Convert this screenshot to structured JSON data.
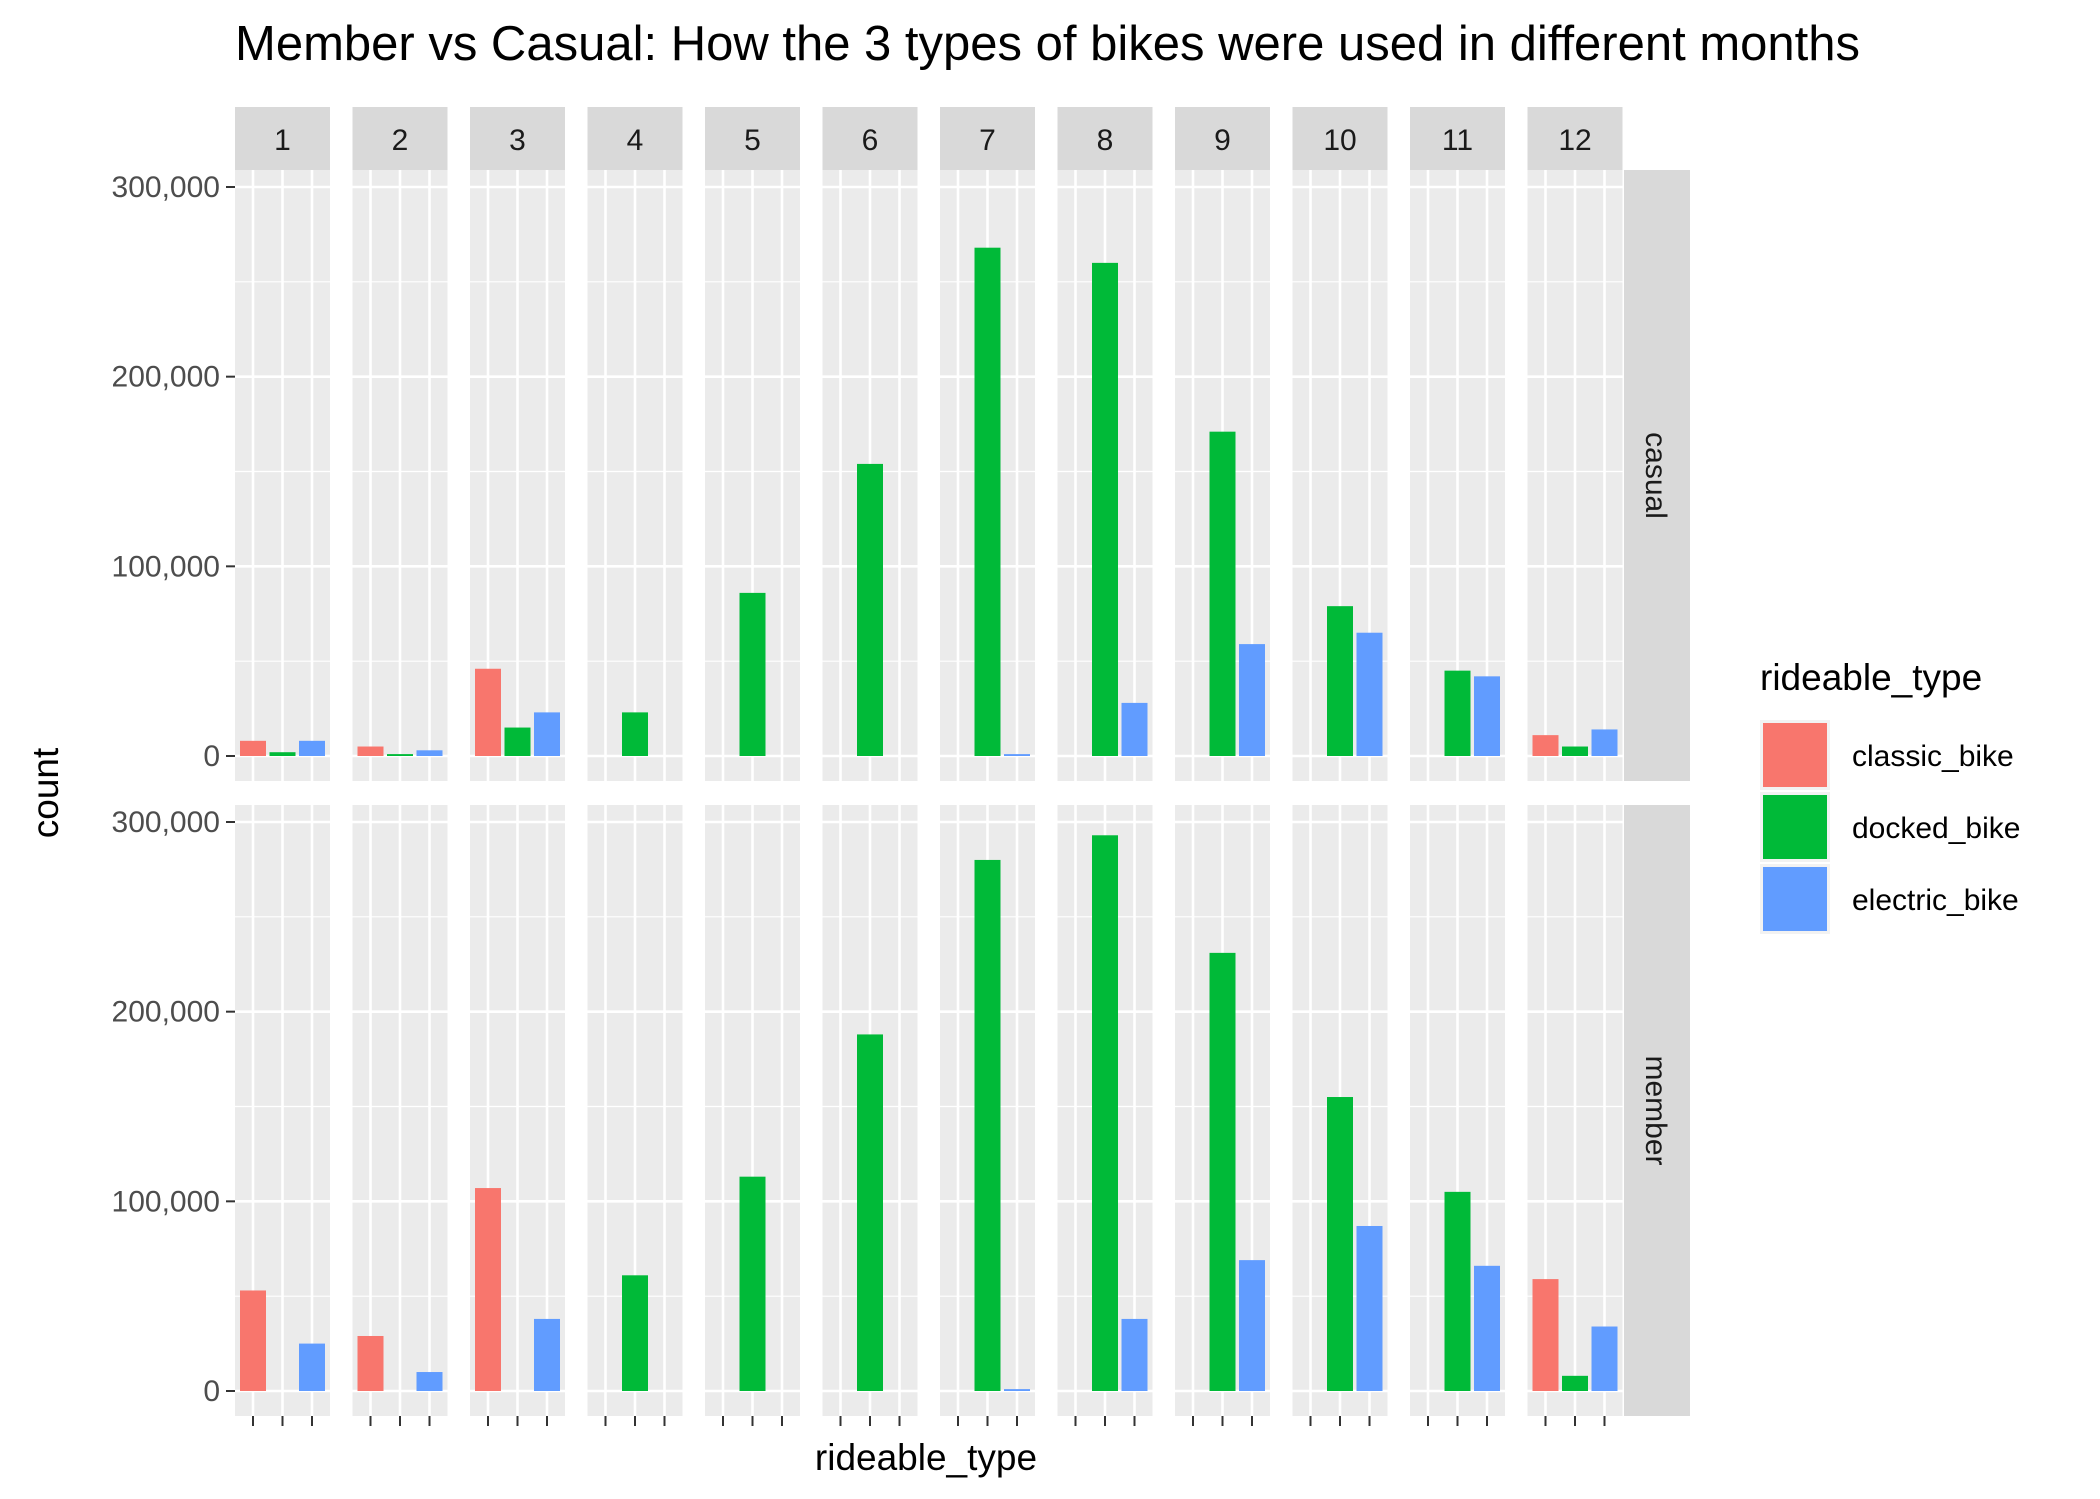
{
  "chart_data": {
    "type": "bar",
    "title": "Member vs Casual: How the 3 types of bikes were used in different months",
    "xlabel": "rideable_type",
    "ylabel": "count",
    "facet_columns": [
      "1",
      "2",
      "3",
      "4",
      "5",
      "6",
      "7",
      "8",
      "9",
      "10",
      "11",
      "12"
    ],
    "facet_rows": [
      "casual",
      "member"
    ],
    "categories": [
      "classic_bike",
      "docked_bike",
      "electric_bike"
    ],
    "legend": {
      "title": "rideable_type",
      "placement": "right",
      "entries": [
        {
          "label": "classic_bike",
          "color": "#F8766D"
        },
        {
          "label": "docked_bike",
          "color": "#00BA38"
        },
        {
          "label": "electric_bike",
          "color": "#619CFF"
        }
      ]
    },
    "ylim": [
      0,
      300000
    ],
    "yticks": [
      0,
      100000,
      200000,
      300000
    ],
    "ytick_labels": [
      "0",
      "100,000",
      "200,000",
      "300,000"
    ],
    "grid": true,
    "series": [
      {
        "name": "casual",
        "values": [
          [
            8000,
            2000,
            8000
          ],
          [
            5000,
            1000,
            3000
          ],
          [
            46000,
            15000,
            23000
          ],
          [
            null,
            23000,
            null
          ],
          [
            null,
            86000,
            null
          ],
          [
            null,
            154000,
            null
          ],
          [
            null,
            268000,
            1000
          ],
          [
            null,
            260000,
            28000
          ],
          [
            null,
            171000,
            59000
          ],
          [
            null,
            79000,
            65000
          ],
          [
            null,
            45000,
            42000
          ],
          [
            11000,
            5000,
            14000
          ]
        ]
      },
      {
        "name": "member",
        "values": [
          [
            53000,
            null,
            25000
          ],
          [
            29000,
            null,
            10000
          ],
          [
            107000,
            null,
            38000
          ],
          [
            null,
            61000,
            null
          ],
          [
            null,
            113000,
            null
          ],
          [
            null,
            188000,
            null
          ],
          [
            null,
            280000,
            1000
          ],
          [
            null,
            293000,
            38000
          ],
          [
            null,
            231000,
            69000
          ],
          [
            null,
            155000,
            87000
          ],
          [
            null,
            105000,
            66000
          ],
          [
            null,
            8000,
            34000
          ]
        ]
      }
    ],
    "extra_values": {
      "member_12_classic_bike": 59000
    }
  }
}
